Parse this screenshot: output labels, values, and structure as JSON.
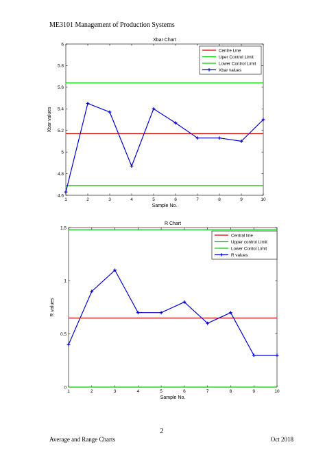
{
  "page": {
    "header": "ME3101 Management of Production Systems",
    "page_number": "2",
    "footer_left": "Average and Range Charts",
    "footer_right": "Oct 2018"
  },
  "chart_data": [
    {
      "type": "line",
      "title": "Xbar Chart",
      "xlabel": "Sample No.",
      "ylabel": "Xbar values",
      "xlim": [
        1,
        10
      ],
      "ylim": [
        4.6,
        6
      ],
      "xticks": [
        "1",
        "2",
        "3",
        "4",
        "5",
        "6",
        "7",
        "8",
        "9",
        "10"
      ],
      "yticks": [
        "4.6",
        "4.8",
        "5",
        "5.2",
        "5.4",
        "5.6",
        "5.8",
        "6"
      ],
      "legend_position": "top-right",
      "grid": false,
      "x": [
        1,
        2,
        3,
        4,
        5,
        6,
        7,
        8,
        9,
        10
      ],
      "series": [
        {
          "name": "Centre Line",
          "color": "#d00000",
          "values": [
            5.17,
            5.17,
            5.17,
            5.17,
            5.17,
            5.17,
            5.17,
            5.17,
            5.17,
            5.17
          ]
        },
        {
          "name": "Uper Control Limit",
          "color": "#00cc00",
          "values": [
            5.64,
            5.64,
            5.64,
            5.64,
            5.64,
            5.64,
            5.64,
            5.64,
            5.64,
            5.64
          ]
        },
        {
          "name": "Lower Control Limit",
          "color": "#00cc00",
          "values": [
            4.69,
            4.69,
            4.69,
            4.69,
            4.69,
            4.69,
            4.69,
            4.69,
            4.69,
            4.69
          ]
        },
        {
          "name": "Xbar values",
          "color": "#0000cc",
          "marker": true,
          "values": [
            4.63,
            5.45,
            5.37,
            4.87,
            5.4,
            5.27,
            5.13,
            5.13,
            5.1,
            5.3
          ]
        }
      ]
    },
    {
      "type": "line",
      "title": "R Chart",
      "xlabel": "Sample No.",
      "ylabel": "R values",
      "xlim": [
        1,
        10
      ],
      "ylim": [
        0,
        1.5
      ],
      "xticks": [
        "1",
        "2",
        "3",
        "4",
        "5",
        "6",
        "7",
        "8",
        "9",
        "10"
      ],
      "yticks": [
        "0",
        "0.5",
        "1",
        "1.5"
      ],
      "legend_position": "top-right",
      "grid": false,
      "x": [
        1,
        2,
        3,
        4,
        5,
        6,
        7,
        8,
        9,
        10
      ],
      "series": [
        {
          "name": "Central line",
          "color": "#d00000",
          "values": [
            0.65,
            0.65,
            0.65,
            0.65,
            0.65,
            0.65,
            0.65,
            0.65,
            0.65,
            0.65
          ]
        },
        {
          "name": "Upper control Limit",
          "color": "#00cc00",
          "values": [
            1.48,
            1.48,
            1.48,
            1.48,
            1.48,
            1.48,
            1.48,
            1.48,
            1.48,
            1.48
          ]
        },
        {
          "name": "Lower Contol Limit",
          "color": "#00cc00",
          "values": [
            0,
            0,
            0,
            0,
            0,
            0,
            0,
            0,
            0,
            0
          ]
        },
        {
          "name": "R values",
          "color": "#0000cc",
          "marker": true,
          "values": [
            0.4,
            0.9,
            1.1,
            0.7,
            0.7,
            0.8,
            0.6,
            0.7,
            0.3,
            0.3
          ]
        }
      ]
    }
  ]
}
